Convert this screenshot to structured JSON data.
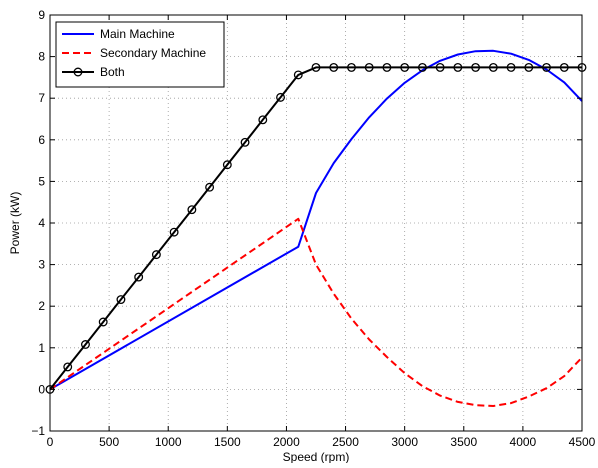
{
  "chart_data": {
    "type": "line",
    "xlabel": "Speed (rpm)",
    "ylabel": "Power (kW)",
    "xlim": [
      0,
      4500
    ],
    "ylim": [
      -1,
      9
    ],
    "xticks": [
      0,
      500,
      1000,
      1500,
      2000,
      2500,
      3000,
      3500,
      4000,
      4500
    ],
    "yticks": [
      -1,
      0,
      1,
      2,
      3,
      4,
      5,
      6,
      7,
      8,
      9
    ],
    "grid": true,
    "legend_position": "top-left",
    "series": [
      {
        "name": "Main Machine",
        "color": "#0000ff",
        "style": "solid",
        "x": [
          0,
          2100,
          2250,
          2400,
          2550,
          2700,
          2850,
          3000,
          3150,
          3300,
          3450,
          3600,
          3750,
          3900,
          4050,
          4200,
          4350,
          4500
        ],
        "y": [
          0,
          3.43,
          4.72,
          5.44,
          6.02,
          6.54,
          6.99,
          7.37,
          7.67,
          7.9,
          8.05,
          8.13,
          8.14,
          8.07,
          7.92,
          7.69,
          7.38,
          6.93
        ]
      },
      {
        "name": "Secondary Machine",
        "color": "#ff0000",
        "style": "dashed",
        "x": [
          0,
          2100,
          2250,
          2400,
          2550,
          2700,
          2850,
          3000,
          3150,
          3300,
          3450,
          3600,
          3750,
          3900,
          4050,
          4200,
          4350,
          4500
        ],
        "y": [
          0,
          4.1,
          3.0,
          2.3,
          1.7,
          1.2,
          0.78,
          0.39,
          0.08,
          -0.15,
          -0.3,
          -0.38,
          -0.4,
          -0.33,
          -0.17,
          0.03,
          0.32,
          0.77
        ]
      },
      {
        "name": "Both",
        "color": "#000000",
        "style": "solid",
        "marker": "circle",
        "x": [
          0,
          150,
          300,
          450,
          600,
          750,
          900,
          1050,
          1200,
          1350,
          1500,
          1650,
          1800,
          1950,
          2100,
          2250,
          2400,
          2550,
          2700,
          2850,
          3000,
          3150,
          3300,
          3450,
          3600,
          3750,
          3900,
          4050,
          4200,
          4350,
          4500
        ],
        "y": [
          0,
          0.54,
          1.08,
          1.62,
          2.16,
          2.7,
          3.24,
          3.78,
          4.32,
          4.86,
          5.4,
          5.94,
          6.48,
          7.02,
          7.56,
          7.74,
          7.74,
          7.74,
          7.74,
          7.74,
          7.74,
          7.74,
          7.74,
          7.74,
          7.74,
          7.74,
          7.74,
          7.74,
          7.74,
          7.74,
          7.74
        ]
      }
    ]
  }
}
